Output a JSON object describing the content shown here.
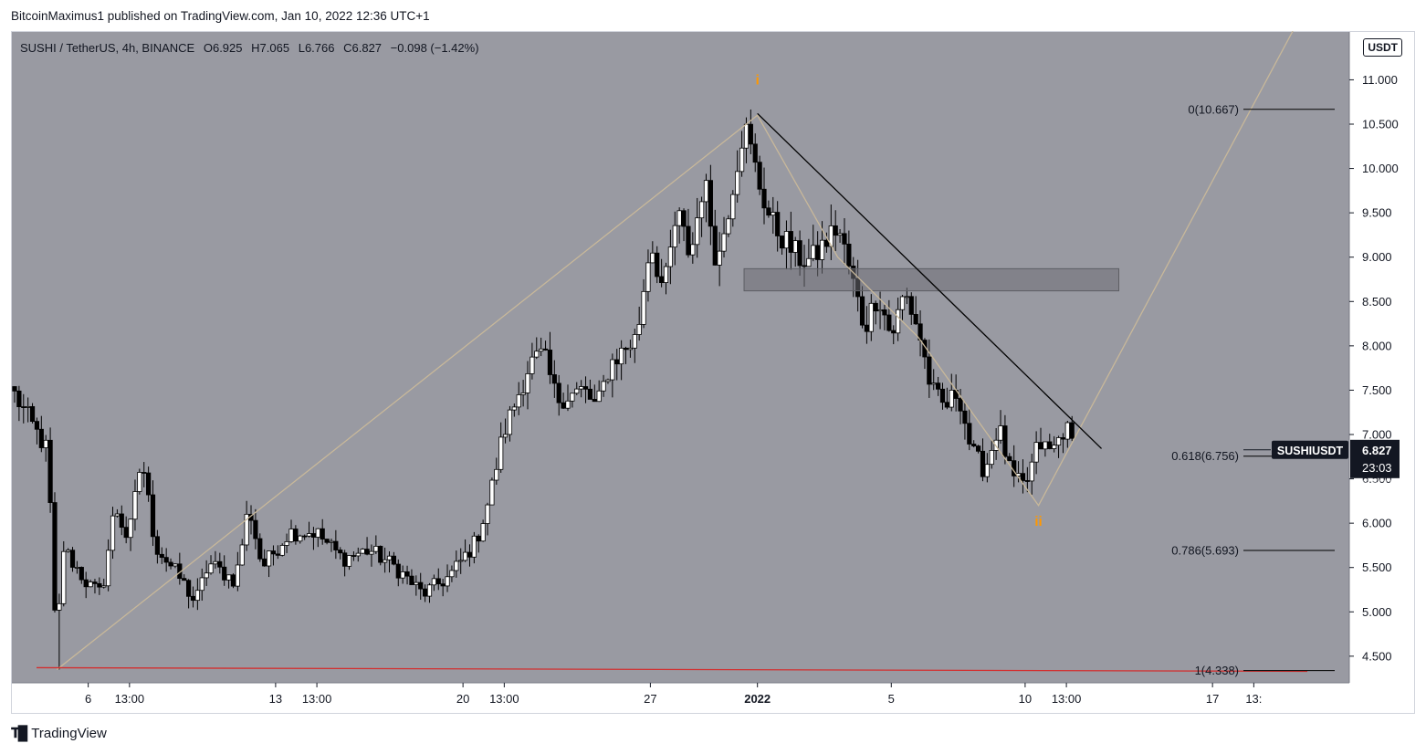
{
  "header": {
    "published": "BitcoinMaximus1 published on TradingView.com, Jan 10, 2022 12:36 UTC+1"
  },
  "legend": {
    "symbol": "SUSHI / TetherUS, 4h, BINANCE",
    "o_label": "O",
    "o": "6.925",
    "h_label": "H",
    "h": "7.065",
    "l_label": "L",
    "l": "6.766",
    "c_label": "C",
    "c": "6.827",
    "change": "−0.098 (−1.42%)"
  },
  "currency_badge": "USDT",
  "footer": {
    "brand": "TradingView",
    "logo_icon": "tradingview-logo-icon"
  },
  "colors": {
    "plot_bg": "#999aa2",
    "candle_up": "#ffffff",
    "candle_down": "#000000",
    "fib_line": "#000000",
    "support_line": "#d32f2f",
    "wave_label": "#ff9800",
    "path_line": "#c8b89a",
    "zone_fill": "#6f7077",
    "price_tag_bg": "#131722"
  },
  "chart_data": {
    "type": "candlestick",
    "timeframe": "4h",
    "y_range": [
      4.2,
      11.55
    ],
    "y_ticks": [
      "4.500",
      "5.000",
      "5.500",
      "6.000",
      "6.500",
      "7.000",
      "7.500",
      "8.000",
      "8.500",
      "9.000",
      "9.500",
      "10.000",
      "10.500",
      "11.000"
    ],
    "x_range": [
      "2022-01-03T06:00",
      "2022-01-20T13:00"
    ],
    "x_ticks": [
      {
        "label": "6",
        "t": "2022-01-06T00:00"
      },
      {
        "label": "13:00",
        "t": "2022-01-07T13:00"
      },
      {
        "label": "13",
        "t": "2022-01-13T00:00"
      },
      {
        "label": "13:00",
        "t": "2022-01-14T13:00"
      },
      {
        "label": "20",
        "t": "2022-01-20T00:00"
      },
      {
        "label": "13:00",
        "t": "2022-01-21T13:00"
      },
      {
        "label": "27",
        "t": "2022-01-27T00:00"
      },
      {
        "label": "2022",
        "t": "2022-01-31T00:00",
        "bold": true
      },
      {
        "label": "5",
        "t": "2022-02-05T00:00"
      },
      {
        "label": "10",
        "t": "2022-02-10T00:00"
      },
      {
        "label": "13:00",
        "t": "2022-02-11T13:00"
      },
      {
        "label": "17",
        "t": "2022-02-17T00:00"
      },
      {
        "label": "13:",
        "t": "2022-02-18T13:00"
      }
    ],
    "price_key_points": [
      {
        "t": "2022-01-03T06:00",
        "p": 7.45
      },
      {
        "t": "2022-01-04T12:00",
        "p": 6.8
      },
      {
        "t": "2022-01-04T20:00",
        "p": 4.35
      },
      {
        "t": "2022-01-05T00:00",
        "p": 5.75
      },
      {
        "t": "2022-01-06T00:00",
        "p": 5.3
      },
      {
        "t": "2022-01-06T12:00",
        "p": 5.2
      },
      {
        "t": "2022-01-07T00:00",
        "p": 6.2
      },
      {
        "t": "2022-01-07T12:00",
        "p": 5.8
      },
      {
        "t": "2022-01-08T00:00",
        "p": 6.75
      },
      {
        "t": "2022-01-08T12:00",
        "p": 5.75
      },
      {
        "t": "2022-01-09T12:00",
        "p": 5.35
      },
      {
        "t": "2022-01-10T00:00",
        "p": 5.1
      },
      {
        "t": "2022-01-10T12:00",
        "p": 5.55
      },
      {
        "t": "2022-01-11T12:00",
        "p": 5.35
      },
      {
        "t": "2022-01-12T00:00",
        "p": 6.2
      },
      {
        "t": "2022-01-12T12:00",
        "p": 5.5
      },
      {
        "t": "2022-01-13T12:00",
        "p": 5.9
      },
      {
        "t": "2022-01-14T12:00",
        "p": 5.9
      },
      {
        "t": "2022-01-15T12:00",
        "p": 5.6
      },
      {
        "t": "2022-01-16T12:00",
        "p": 5.7
      },
      {
        "t": "2022-01-17T12:00",
        "p": 5.5
      },
      {
        "t": "2022-01-18T12:00",
        "p": 5.2
      },
      {
        "t": "2022-01-19T12:00",
        "p": 5.4
      },
      {
        "t": "2022-01-20T12:00",
        "p": 5.8
      },
      {
        "t": "2022-01-21T00:00",
        "p": 6.3
      },
      {
        "t": "2022-01-21T12:00",
        "p": 7.0
      },
      {
        "t": "2022-01-22T00:00",
        "p": 7.4
      },
      {
        "t": "2022-01-22T12:00",
        "p": 7.8
      },
      {
        "t": "2022-01-23T00:00",
        "p": 7.9
      },
      {
        "t": "2022-01-23T12:00",
        "p": 7.4
      },
      {
        "t": "2022-01-24T12:00",
        "p": 7.5
      },
      {
        "t": "2022-01-25T00:00",
        "p": 7.3
      },
      {
        "t": "2022-01-25T12:00",
        "p": 7.8
      },
      {
        "t": "2022-01-26T12:00",
        "p": 8.1
      },
      {
        "t": "2022-01-27T00:00",
        "p": 9.2
      },
      {
        "t": "2022-01-27T12:00",
        "p": 8.6
      },
      {
        "t": "2022-01-28T00:00",
        "p": 9.5
      },
      {
        "t": "2022-01-28T12:00",
        "p": 9.0
      },
      {
        "t": "2022-01-29T00:00",
        "p": 9.9
      },
      {
        "t": "2022-01-29T12:00",
        "p": 8.9
      },
      {
        "t": "2022-01-30T00:00",
        "p": 9.7
      },
      {
        "t": "2022-01-30T12:00",
        "p": 10.5
      },
      {
        "t": "2022-01-31T00:00",
        "p": 9.9
      },
      {
        "t": "2022-01-31T12:00",
        "p": 9.4
      },
      {
        "t": "2022-02-01T00:00",
        "p": 9.2
      },
      {
        "t": "2022-02-01T12:00",
        "p": 9.0
      },
      {
        "t": "2022-02-02T00:00",
        "p": 8.95
      },
      {
        "t": "2022-02-02T12:00",
        "p": 9.15
      },
      {
        "t": "2022-02-03T00:00",
        "p": 9.35
      },
      {
        "t": "2022-02-03T12:00",
        "p": 8.8
      },
      {
        "t": "2022-02-04T00:00",
        "p": 8.2
      },
      {
        "t": "2022-02-04T12:00",
        "p": 8.6
      },
      {
        "t": "2022-02-05T00:00",
        "p": 8.1
      },
      {
        "t": "2022-02-05T12:00",
        "p": 8.6
      },
      {
        "t": "2022-02-06T00:00",
        "p": 8.2
      },
      {
        "t": "2022-02-06T12:00",
        "p": 7.5
      },
      {
        "t": "2022-02-07T00:00",
        "p": 7.3
      },
      {
        "t": "2022-02-07T12:00",
        "p": 7.5
      },
      {
        "t": "2022-02-08T00:00",
        "p": 6.8
      },
      {
        "t": "2022-02-08T12:00",
        "p": 6.6
      },
      {
        "t": "2022-02-09T00:00",
        "p": 7.1
      },
      {
        "t": "2022-02-09T12:00",
        "p": 6.5
      },
      {
        "t": "2022-02-10T00:00",
        "p": 6.4
      },
      {
        "t": "2022-02-10T12:00",
        "p": 6.9
      },
      {
        "t": "2022-02-11T00:00",
        "p": 6.8
      },
      {
        "t": "2022-02-11T12:00",
        "p": 7.1
      },
      {
        "t": "2022-02-11T20:00",
        "p": 6.83
      }
    ],
    "fib_levels": [
      {
        "label": "0(10.667)",
        "value": 10.667
      },
      {
        "label": "0.618(6.756)",
        "value": 6.756
      },
      {
        "label": "0.786(5.693)",
        "value": 5.693
      },
      {
        "label": "1(4.338)",
        "value": 4.338
      }
    ],
    "support_line": {
      "value": 4.35
    },
    "zone": {
      "from": "2022-01-30T12:00",
      "to": "2022-02-13T12:00",
      "low": 8.62,
      "high": 8.87
    },
    "trendline": {
      "from": {
        "t": "2022-01-31T00:00",
        "p": 10.62
      },
      "to": {
        "t": "2022-02-12T00:00",
        "p": 6.8
      }
    },
    "wave_path": [
      {
        "t": "2022-01-04T20:00",
        "p": 4.35
      },
      {
        "t": "2022-01-31T00:00",
        "p": 10.6
      },
      {
        "t": "2022-02-03T00:00",
        "p": 9.0
      },
      {
        "t": "2022-02-06T00:00",
        "p": 8.1
      },
      {
        "t": "2022-02-10T12:00",
        "p": 6.2
      },
      {
        "t": "2022-02-20T00:00",
        "p": 11.55
      }
    ],
    "wave_labels": [
      {
        "text": "i",
        "t": "2022-01-31T00:00",
        "p": 10.95
      },
      {
        "text": "ii",
        "t": "2022-02-10T12:00",
        "p": 5.97
      }
    ],
    "last_price": {
      "label": "SUSHIUSDT",
      "value": "6.827",
      "countdown": "23:03",
      "p": 6.827
    },
    "hidden_tick_under_tag": "6.500"
  }
}
